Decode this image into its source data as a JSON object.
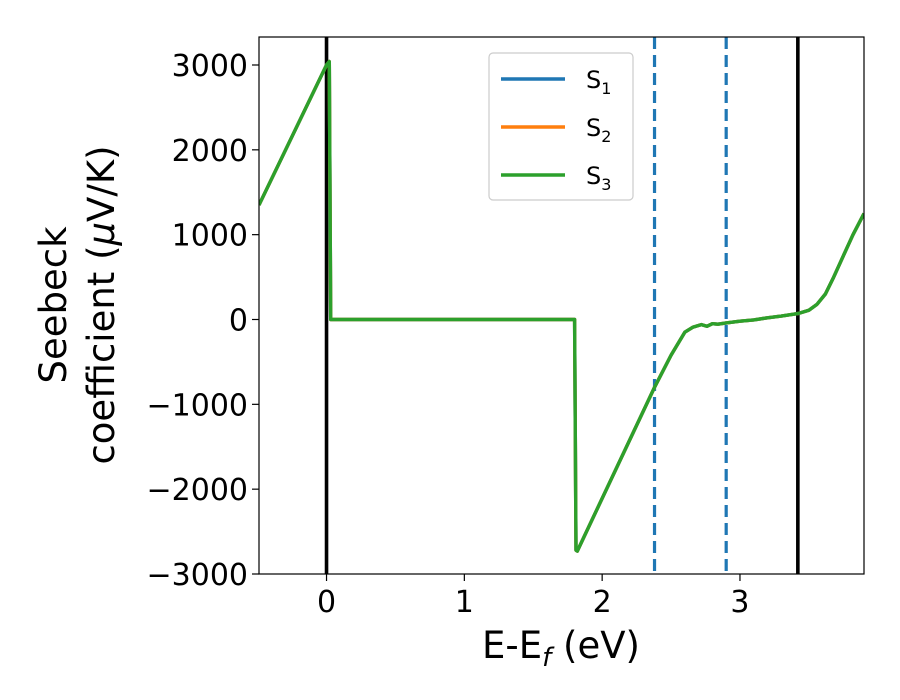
{
  "chart_data": {
    "type": "line",
    "xlabel": "E-E",
    "xlabel_sub": "f",
    "xlabel_unit": " (eV)",
    "ylabel_line1": "Seebeck",
    "ylabel_line2": "coefficient  (",
    "ylabel_mu": "μ",
    "ylabel_unit": "V/K)",
    "xlim": [
      -0.49,
      3.9
    ],
    "ylim": [
      -3000,
      3330
    ],
    "x_ticks": [
      0,
      1,
      2,
      3
    ],
    "x_tick_labels": [
      "0",
      "1",
      "2",
      "3"
    ],
    "y_ticks": [
      3000,
      2000,
      1000,
      0,
      -1000,
      -2000,
      -3000
    ],
    "y_tick_labels": [
      "3000",
      "2000",
      "1000",
      "0",
      "−1000",
      "−2000",
      "−3000"
    ],
    "grid": false,
    "legend_position": "top-center",
    "vertical_lines": [
      {
        "x": 0.0,
        "style": "solid",
        "color": "#000000"
      },
      {
        "x": 3.42,
        "style": "solid",
        "color": "#000000"
      },
      {
        "x": 2.38,
        "style": "dashed",
        "color": "#1f77b4"
      },
      {
        "x": 2.9,
        "style": "dashed",
        "color": "#1f77b4"
      }
    ],
    "series": [
      {
        "name": "S",
        "sub": "1",
        "color": "#1f77b4",
        "x": [
          -0.49,
          0.0,
          0.02,
          0.03,
          1.8,
          1.81,
          1.82,
          2.38,
          2.5,
          2.6,
          2.66,
          2.72,
          2.76,
          2.8,
          2.84,
          2.9,
          3.0,
          3.1,
          3.2,
          3.3,
          3.42,
          3.5,
          3.56,
          3.62,
          3.68,
          3.75,
          3.82,
          3.9
        ],
        "y": [
          1350,
          3000,
          3040,
          0,
          0,
          -2720,
          -2730,
          -800,
          -420,
          -150,
          -90,
          -60,
          -80,
          -50,
          -55,
          -40,
          -20,
          -5,
          20,
          40,
          70,
          110,
          180,
          300,
          500,
          750,
          1000,
          1250
        ]
      },
      {
        "name": "S",
        "sub": "2",
        "color": "#ff7f0e",
        "x": [
          -0.49,
          0.0,
          0.02,
          0.03,
          1.8,
          1.81,
          1.82,
          2.38,
          2.5,
          2.6,
          2.66,
          2.72,
          2.76,
          2.8,
          2.84,
          2.9,
          3.0,
          3.1,
          3.2,
          3.3,
          3.42,
          3.5,
          3.56,
          3.62,
          3.68,
          3.75,
          3.82,
          3.9
        ],
        "y": [
          1350,
          3000,
          3040,
          0,
          0,
          -2720,
          -2730,
          -800,
          -420,
          -150,
          -90,
          -60,
          -80,
          -50,
          -55,
          -40,
          -20,
          -5,
          20,
          40,
          70,
          110,
          180,
          300,
          500,
          750,
          1000,
          1250
        ]
      },
      {
        "name": "S",
        "sub": "3",
        "color": "#2ca02c",
        "x": [
          -0.49,
          0.0,
          0.02,
          0.03,
          1.8,
          1.81,
          1.82,
          2.38,
          2.5,
          2.6,
          2.66,
          2.72,
          2.76,
          2.8,
          2.84,
          2.9,
          3.0,
          3.1,
          3.2,
          3.3,
          3.42,
          3.5,
          3.56,
          3.62,
          3.68,
          3.75,
          3.82,
          3.9
        ],
        "y": [
          1350,
          3000,
          3040,
          0,
          0,
          -2720,
          -2730,
          -800,
          -420,
          -150,
          -90,
          -60,
          -80,
          -50,
          -55,
          -40,
          -20,
          -5,
          20,
          40,
          70,
          110,
          180,
          300,
          500,
          750,
          1000,
          1250
        ]
      }
    ]
  }
}
